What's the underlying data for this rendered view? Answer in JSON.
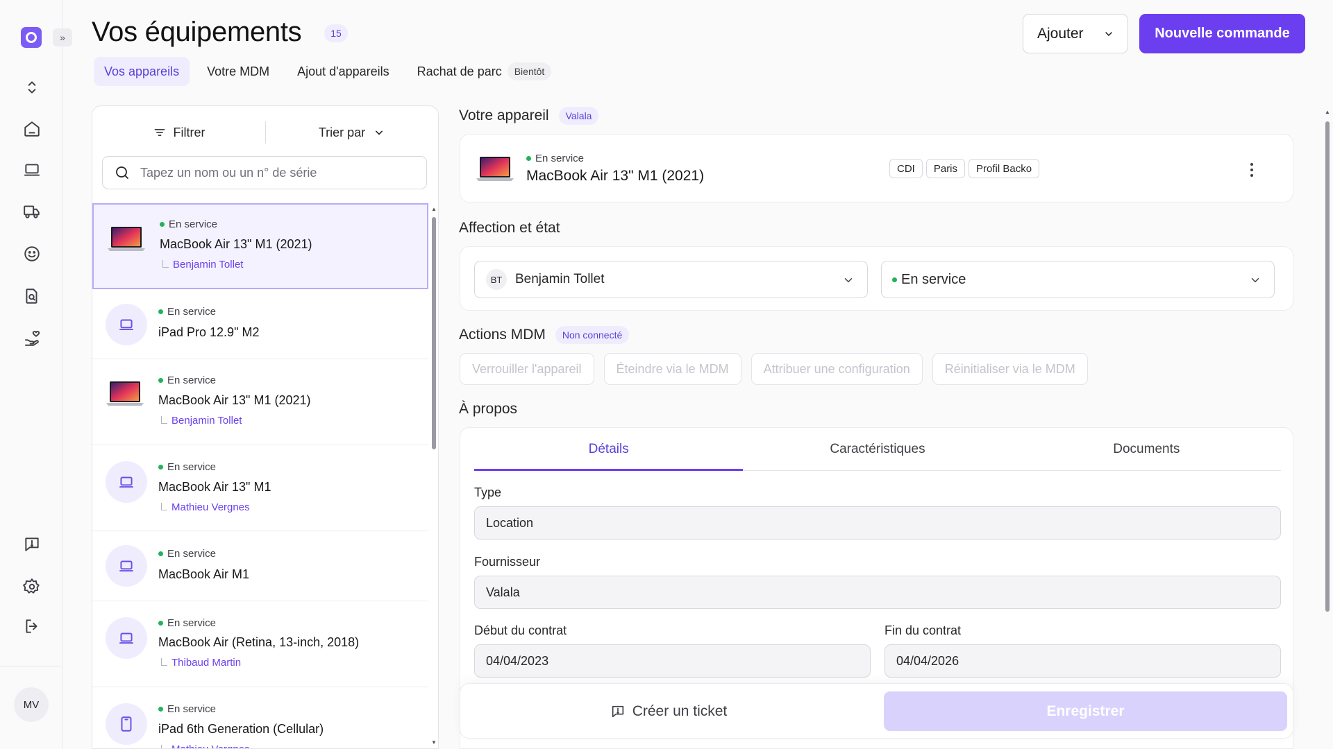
{
  "header": {
    "title": "Vos équipements",
    "count": "15",
    "add_label": "Ajouter",
    "new_order_label": "Nouvelle commande"
  },
  "tabs": [
    {
      "label": "Vos appareils",
      "active": true
    },
    {
      "label": "Votre MDM"
    },
    {
      "label": "Ajout d'appareils"
    },
    {
      "label": "Rachat de parc",
      "badge": "Bientôt"
    }
  ],
  "sidebar": {
    "icons": [
      "chevrons-up-down-icon",
      "home-icon",
      "laptop-icon",
      "truck-icon",
      "smile-icon",
      "file-search-icon",
      "hand-heart-icon",
      "feedback-icon",
      "gear-icon",
      "logout-icon"
    ],
    "avatar": "MV"
  },
  "list": {
    "filter_label": "Filtrer",
    "sort_label": "Trier par",
    "search_placeholder": "Tapez un nom ou un n° de série",
    "items": [
      {
        "status": "En service",
        "name": "MacBook Air 13\" M1 (2021)",
        "user": "Benjamin Tollet",
        "thumb": "macbook"
      },
      {
        "status": "En service",
        "name": "iPad Pro 12.9\" M2",
        "user": "",
        "thumb": "laptop-icon"
      },
      {
        "status": "En service",
        "name": "MacBook Air 13\" M1 (2021)",
        "user": "Benjamin Tollet",
        "thumb": "macbook"
      },
      {
        "status": "En service",
        "name": "MacBook Air 13\" M1",
        "user": "Mathieu Vergnes",
        "thumb": "laptop-icon"
      },
      {
        "status": "En service",
        "name": "MacBook Air M1",
        "user": "",
        "thumb": "laptop-icon"
      },
      {
        "status": "En service",
        "name": "MacBook Air (Retina, 13-inch, 2018)",
        "user": "Thibaud Martin",
        "thumb": "laptop-icon"
      },
      {
        "status": "En service",
        "name": "iPad 6th Generation (Cellular)",
        "user": "Mathieu Vergnes",
        "thumb": "tablet-icon"
      }
    ]
  },
  "device": {
    "section_title": "Votre appareil",
    "provider_badge": "Valala",
    "status": "En service",
    "name": "MacBook Air 13\" M1 (2021)",
    "tags": [
      "CDI",
      "Paris",
      "Profil Backo"
    ]
  },
  "assignment": {
    "section_title": "Affection et état",
    "user_initials": "BT",
    "user_name": "Benjamin Tollet",
    "state": "En service"
  },
  "mdm": {
    "section_title": "Actions MDM",
    "status_badge": "Non connecté",
    "actions": [
      "Verrouiller l'appareil",
      "Éteindre via le MDM",
      "Attribuer une configuration",
      "Réinitialiser via le MDM"
    ]
  },
  "about": {
    "section_title": "À propos",
    "tabs": [
      "Détails",
      "Caractéristiques",
      "Documents"
    ],
    "type_label": "Type",
    "type_value": "Location",
    "supplier_label": "Fournisseur",
    "supplier_value": "Valala",
    "start_label": "Début du contrat",
    "start_value": "04/04/2023",
    "end_label": "Fin du contrat",
    "end_value": "04/04/2026"
  },
  "footer": {
    "ticket_label": "Créer un ticket",
    "save_label": "Enregistrer"
  },
  "colors": {
    "accent": "#6b3ff0",
    "accent_soft": "#efedfd",
    "status_green": "#22b35a"
  }
}
